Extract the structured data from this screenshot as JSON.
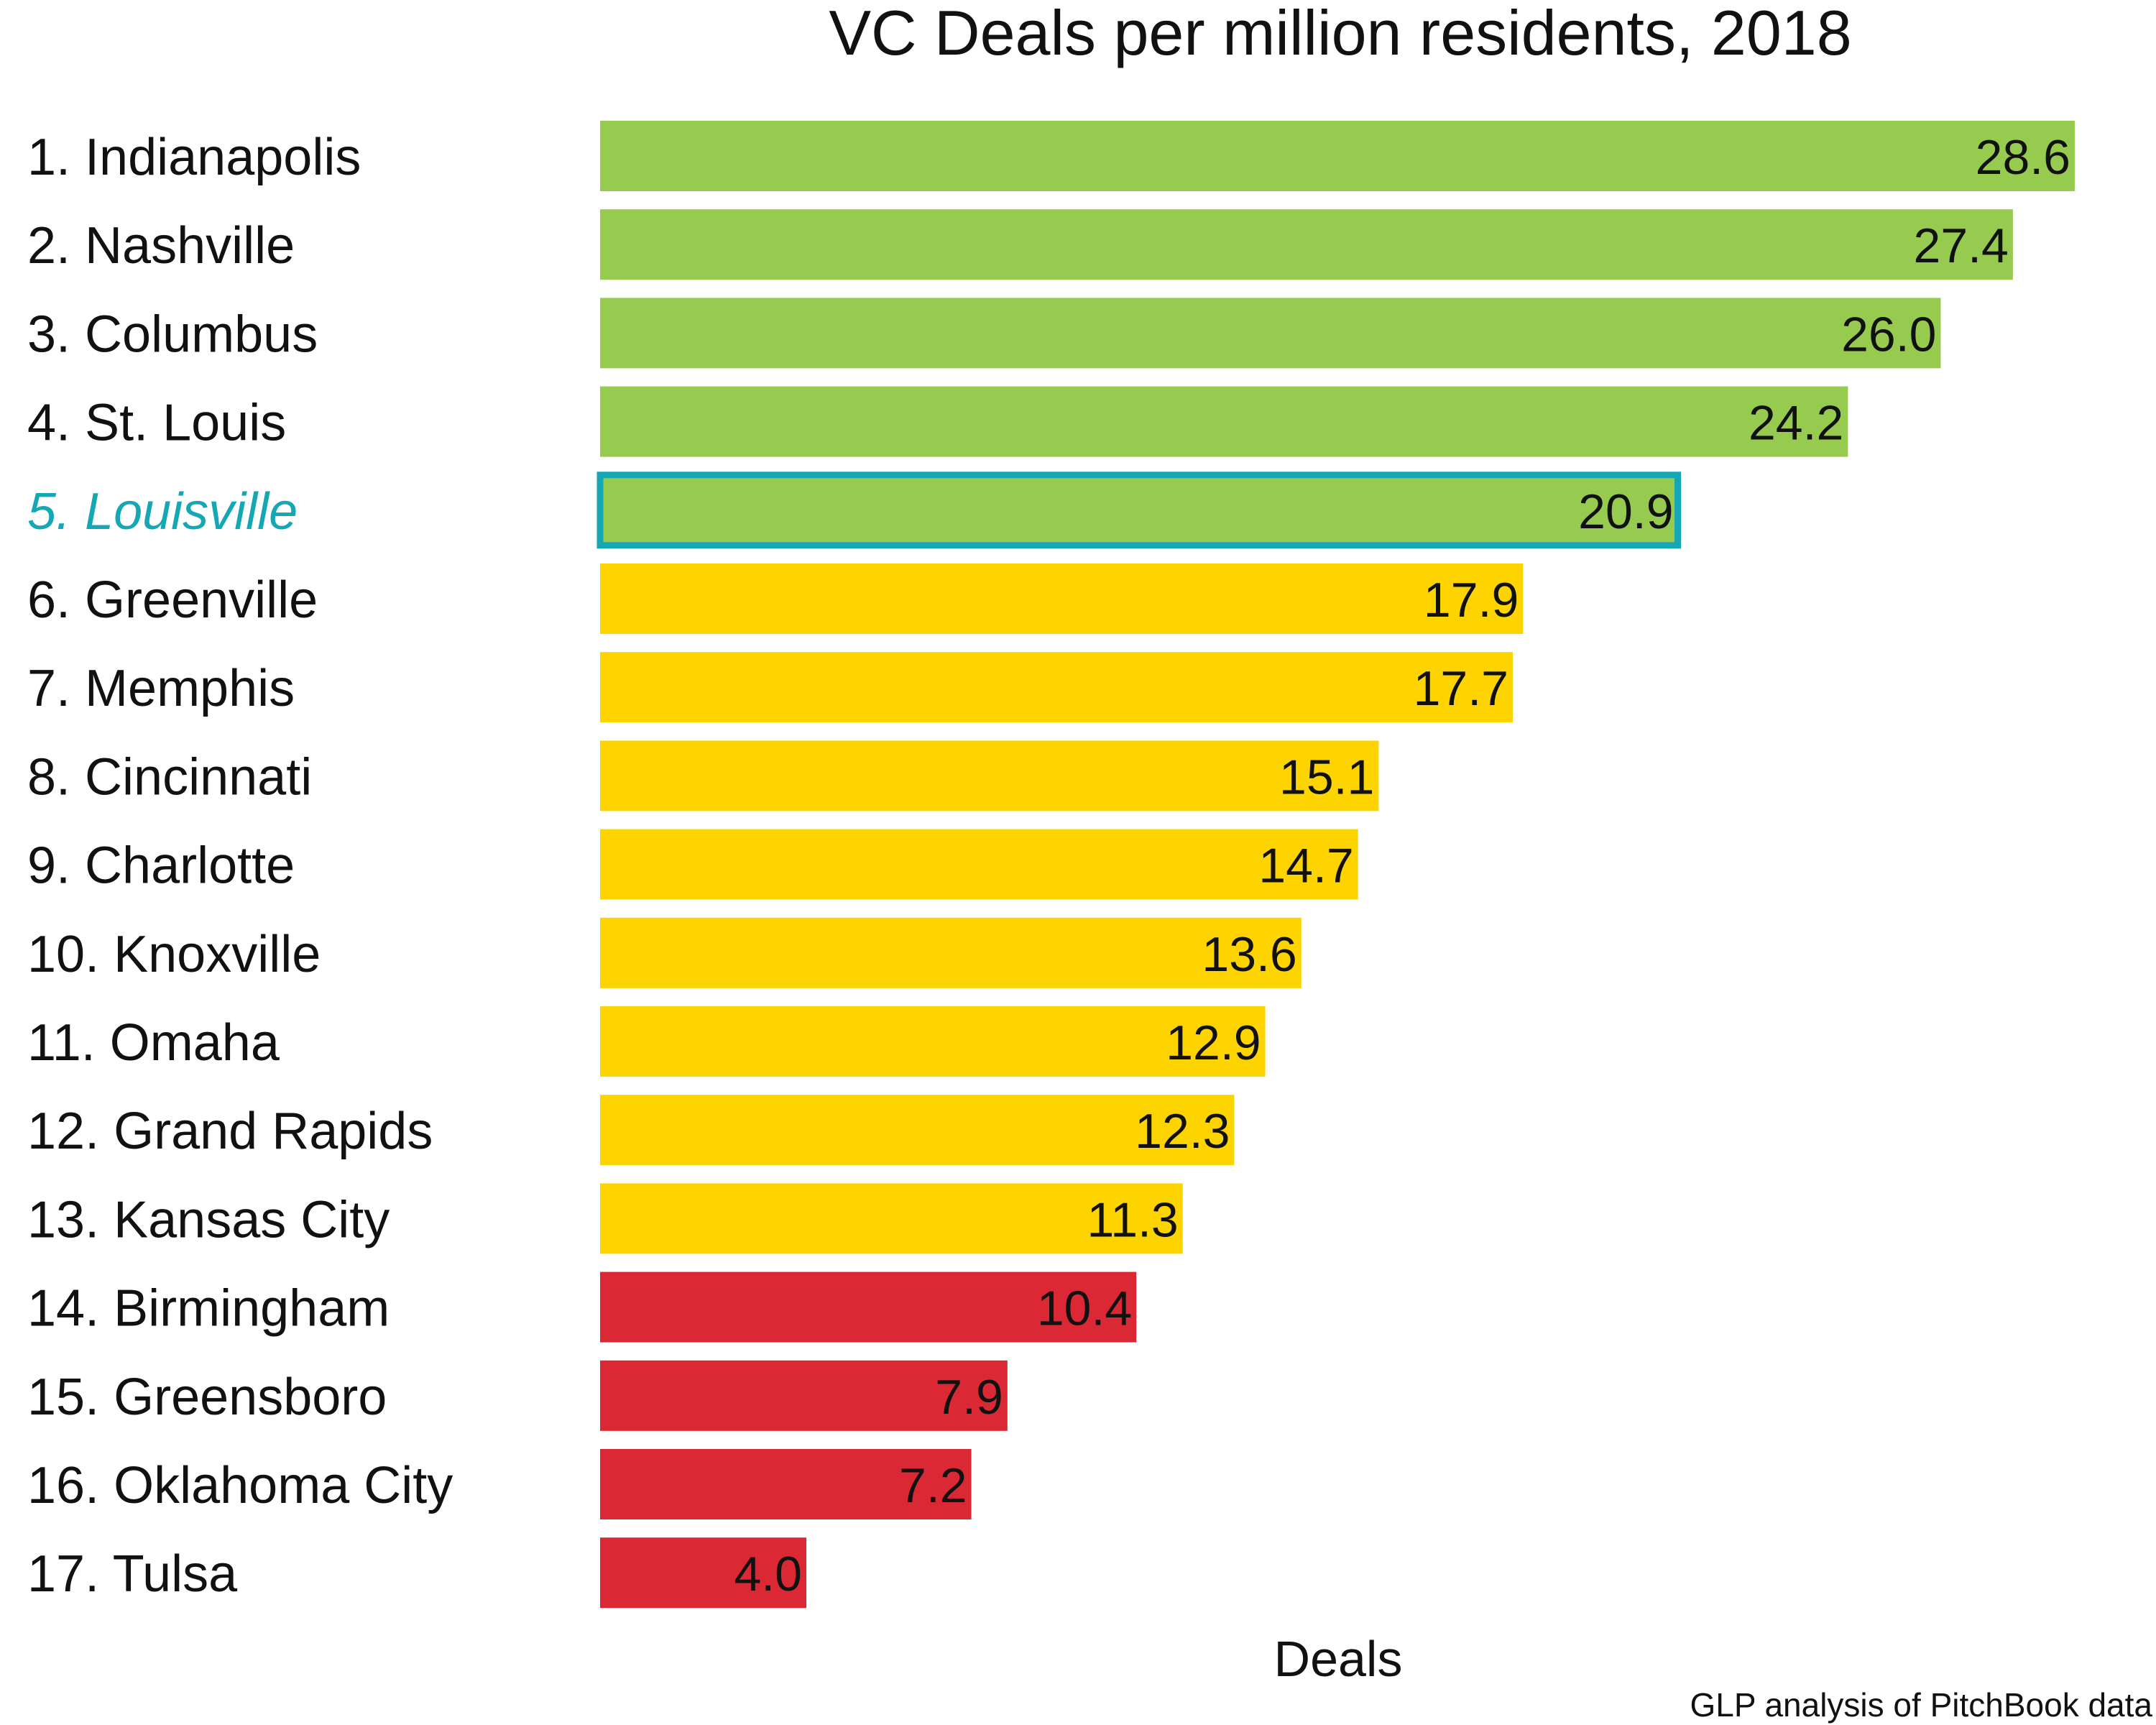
{
  "chart_data": {
    "type": "bar",
    "orientation": "horizontal",
    "title": "VC Deals per million residents, 2018",
    "xlabel": "Deals",
    "source": "GLP analysis of PitchBook data",
    "xlim": [
      0,
      28.6
    ],
    "grid": false,
    "legend": "none",
    "highlight": "5. Louisville",
    "colors": {
      "green": "#97CB4F",
      "yellow": "#FED400",
      "red": "#DB2835",
      "highlight": "#16A7B4",
      "text": "#111111"
    },
    "categories": [
      "1. Indianapolis",
      "2. Nashville",
      "3. Columbus",
      "4. St. Louis",
      "5. Louisville",
      "6. Greenville",
      "7. Memphis",
      "8. Cincinnati",
      "9. Charlotte",
      "10. Knoxville",
      "11. Omaha",
      "12. Grand Rapids",
      "13. Kansas City",
      "14. Birmingham",
      "15. Greensboro",
      "16. Oklahoma City",
      "17. Tulsa"
    ],
    "values": [
      28.6,
      27.4,
      26.0,
      24.2,
      20.9,
      17.9,
      17.7,
      15.1,
      14.7,
      13.6,
      12.9,
      12.3,
      11.3,
      10.4,
      7.9,
      7.2,
      4.0
    ],
    "value_labels": [
      "28.6",
      "27.4",
      "26.0",
      "24.2",
      "20.9",
      "17.9",
      "17.7",
      "15.1",
      "14.7",
      "13.6",
      "12.9",
      "12.3",
      "11.3",
      "10.4",
      "7.9",
      "7.2",
      "4.0"
    ],
    "bar_colors": [
      "green",
      "green",
      "green",
      "green",
      "green",
      "yellow",
      "yellow",
      "yellow",
      "yellow",
      "yellow",
      "yellow",
      "yellow",
      "yellow",
      "red",
      "red",
      "red",
      "red"
    ]
  }
}
